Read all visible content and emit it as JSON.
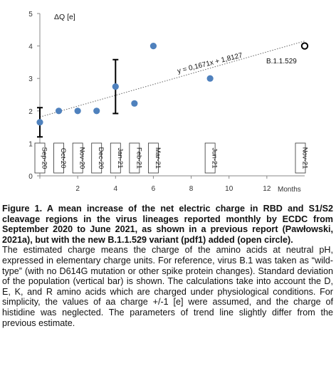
{
  "chart_data": {
    "type": "scatter",
    "ylabel": "ΔQ  [e]",
    "xlabel": "Months",
    "xlim": [
      0,
      14
    ],
    "ylim": [
      0,
      5
    ],
    "x_ticks": [
      0,
      2,
      4,
      6,
      8,
      10,
      12
    ],
    "y_ticks": [
      0,
      1,
      2,
      3,
      4,
      5
    ],
    "grid": false,
    "series": [
      {
        "marker": "filled-circle",
        "color": "#4f81bd",
        "x": [
          0,
          1,
          2,
          3,
          4,
          5,
          6,
          9
        ],
        "y": [
          1.65,
          2.0,
          2.0,
          2.0,
          2.75,
          2.23,
          4.0,
          3.0
        ],
        "error_bars": [
          {
            "x": 0,
            "low": 1.2,
            "high": 2.1
          },
          {
            "x": 4,
            "low": 1.92,
            "high": 3.58
          }
        ]
      },
      {
        "marker": "open-circle",
        "color": "#000000",
        "x": [
          14
        ],
        "y": [
          4.0
        ],
        "label": "B.1.1.529"
      }
    ],
    "trendline": {
      "style": "dotted",
      "slope": 0.1671,
      "intercept": 1.8127,
      "label": "y = 0,1671x + 1,8127"
    },
    "month_labels": [
      {
        "x": 0,
        "text": "Sep-20"
      },
      {
        "x": 1,
        "text": "Oct-20"
      },
      {
        "x": 2,
        "text": "Nov-20"
      },
      {
        "x": 3,
        "text": "Dec-20"
      },
      {
        "x": 4,
        "text": "Jan-21"
      },
      {
        "x": 5,
        "text": "Feb-21"
      },
      {
        "x": 6,
        "text": "Mar-21"
      },
      {
        "x": 9,
        "text": "Jun-21"
      },
      {
        "x": 14,
        "text": "Nov-21"
      }
    ]
  },
  "caption": {
    "title": "Figure 1. A mean increase of the net electric charge in RBD and S1/S2 cleavage regions in the virus lineages reported monthly by ECDC from September 2020 to June 2021, as shown in a previous report (Pawłowski, 2021a), but with the new B.1.1.529 variant (pdf1) added (open circle).",
    "body": "The estimated charge means the charge of the amino acids at neutral pH, expressed in elementary charge units. For reference, virus B.1 was taken as “wild-type” (with no D614G mutation or other spike protein changes). Standard deviation of the population (vertical bar) is shown. The calculations take into account the D, E, K, and R amino acids which are charged under physiological conditions. For simplicity, the values of aa charge +/-1 [e] were assumed, and the charge of histidine was neglected.  The parameters of trend line slightly differ from the previous estimate."
  }
}
